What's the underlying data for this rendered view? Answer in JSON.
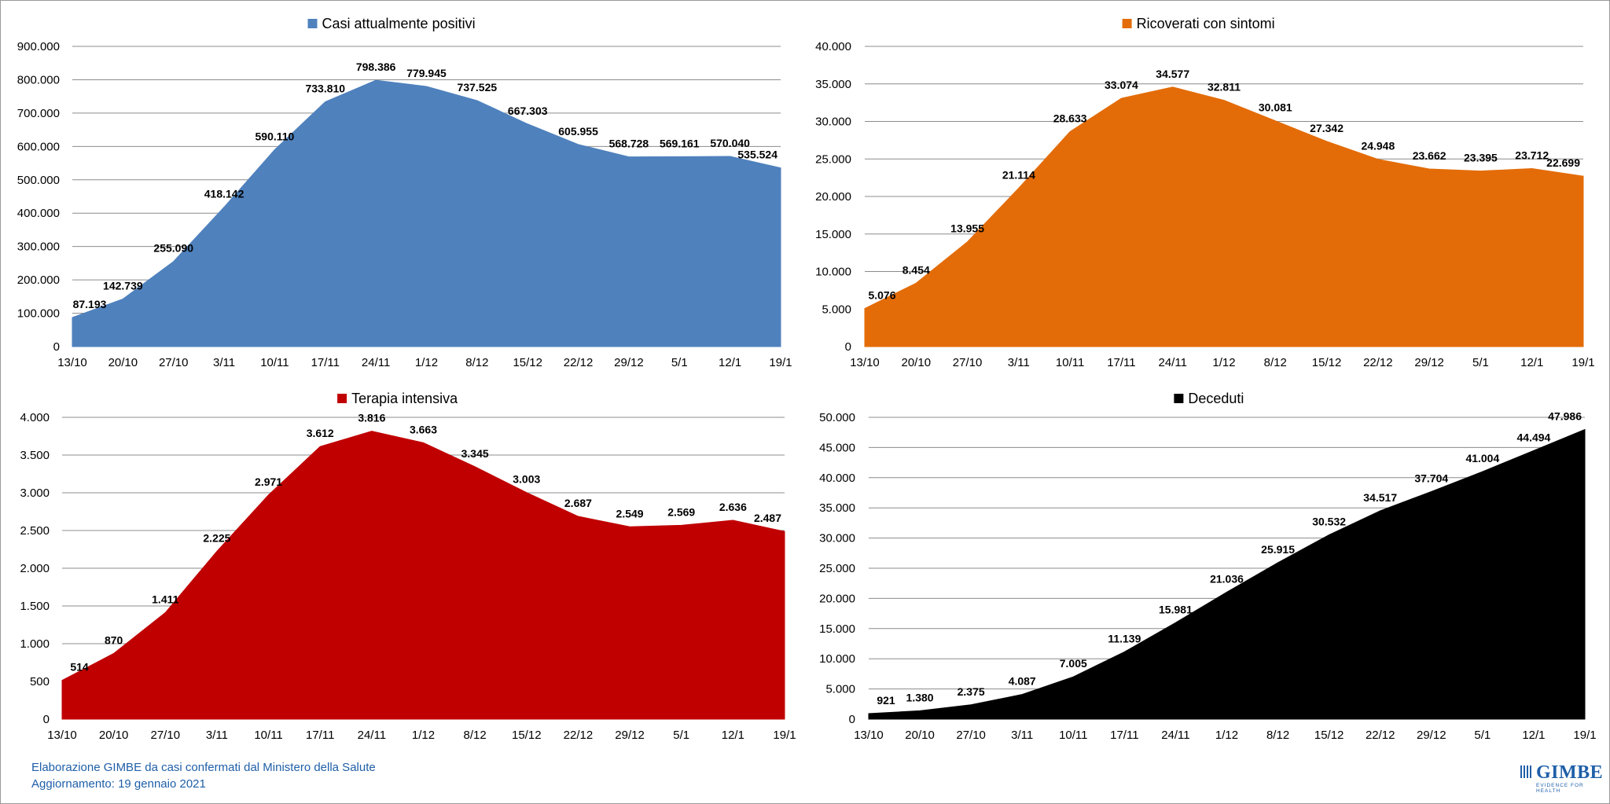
{
  "chart_data": [
    {
      "type": "area",
      "legend": "Casi attualmente positivi",
      "color": "#4f81bd",
      "categories": [
        "13/10",
        "20/10",
        "27/10",
        "3/11",
        "10/11",
        "17/11",
        "24/11",
        "1/12",
        "8/12",
        "15/12",
        "22/12",
        "29/12",
        "5/1",
        "12/1",
        "19/1"
      ],
      "values": [
        87193,
        142739,
        255090,
        418142,
        590110,
        733810,
        798386,
        779945,
        737525,
        667303,
        605955,
        568728,
        569161,
        570040,
        535524
      ],
      "data_labels": [
        "87.193",
        "142.739",
        "255.090",
        "418.142",
        "590.110",
        "733.810",
        "798.386",
        "779.945",
        "737.525",
        "667.303",
        "605.955",
        "568.728",
        "569.161",
        "570.040",
        "535.524"
      ],
      "ylim": [
        0,
        900000
      ],
      "yticks": [
        0,
        100000,
        200000,
        300000,
        400000,
        500000,
        600000,
        700000,
        800000,
        900000
      ],
      "ytick_labels": [
        "0",
        "100.000",
        "200.000",
        "300.000",
        "400.000",
        "500.000",
        "600.000",
        "700.000",
        "800.000",
        "900.000"
      ],
      "grid": true,
      "legend_position": "top"
    },
    {
      "type": "area",
      "legend": "Ricoverati con sintomi",
      "color": "#e36c09",
      "categories": [
        "13/10",
        "20/10",
        "27/10",
        "3/11",
        "10/11",
        "17/11",
        "24/11",
        "1/12",
        "8/12",
        "15/12",
        "22/12",
        "29/12",
        "5/1",
        "12/1",
        "19/1"
      ],
      "values": [
        5076,
        8454,
        13955,
        21114,
        28633,
        33074,
        34577,
        32811,
        30081,
        27342,
        24948,
        23662,
        23395,
        23712,
        22699
      ],
      "data_labels": [
        "5.076",
        "8.454",
        "13.955",
        "21.114",
        "28.633",
        "33.074",
        "34.577",
        "32.811",
        "30.081",
        "27.342",
        "24.948",
        "23.662",
        "23.395",
        "23.712",
        "22.699"
      ],
      "ylim": [
        0,
        40000
      ],
      "yticks": [
        0,
        5000,
        10000,
        15000,
        20000,
        25000,
        30000,
        35000,
        40000
      ],
      "ytick_labels": [
        "0",
        "5.000",
        "10.000",
        "15.000",
        "20.000",
        "25.000",
        "30.000",
        "35.000",
        "40.000"
      ],
      "grid": true,
      "legend_position": "top"
    },
    {
      "type": "area",
      "legend": "Terapia intensiva",
      "color": "#c00000",
      "categories": [
        "13/10",
        "20/10",
        "27/10",
        "3/11",
        "10/11",
        "17/11",
        "24/11",
        "1/12",
        "8/12",
        "15/12",
        "22/12",
        "29/12",
        "5/1",
        "12/1",
        "19/1"
      ],
      "values": [
        514,
        870,
        1411,
        2225,
        2971,
        3612,
        3816,
        3663,
        3345,
        3003,
        2687,
        2549,
        2569,
        2636,
        2487
      ],
      "data_labels": [
        "514",
        "870",
        "1.411",
        "2.225",
        "2.971",
        "3.612",
        "3.816",
        "3.663",
        "3.345",
        "3.003",
        "2.687",
        "2.549",
        "2.569",
        "2.636",
        "2.487"
      ],
      "ylim": [
        0,
        4000
      ],
      "yticks": [
        0,
        500,
        1000,
        1500,
        2000,
        2500,
        3000,
        3500,
        4000
      ],
      "ytick_labels": [
        "0",
        "500",
        "1.000",
        "1.500",
        "2.000",
        "2.500",
        "3.000",
        "3.500",
        "4.000"
      ],
      "grid": true,
      "legend_position": "top"
    },
    {
      "type": "area",
      "legend": "Deceduti",
      "color": "#000000",
      "categories": [
        "13/10",
        "20/10",
        "27/10",
        "3/11",
        "10/11",
        "17/11",
        "24/11",
        "1/12",
        "8/12",
        "15/12",
        "22/12",
        "29/12",
        "5/1",
        "12/1",
        "19/1"
      ],
      "values": [
        921,
        1380,
        2375,
        4087,
        7005,
        11139,
        15981,
        21036,
        25915,
        30532,
        34517,
        37704,
        41004,
        44494,
        47986
      ],
      "data_labels": [
        "921",
        "1.380",
        "2.375",
        "4.087",
        "7.005",
        "11.139",
        "15.981",
        "21.036",
        "25.915",
        "30.532",
        "34.517",
        "37.704",
        "41.004",
        "44.494",
        "47.986"
      ],
      "ylim": [
        0,
        50000
      ],
      "yticks": [
        0,
        5000,
        10000,
        15000,
        20000,
        25000,
        30000,
        35000,
        40000,
        45000,
        50000
      ],
      "ytick_labels": [
        "0",
        "5.000",
        "10.000",
        "15.000",
        "20.000",
        "25.000",
        "30.000",
        "35.000",
        "40.000",
        "45.000",
        "50.000"
      ],
      "grid": true,
      "legend_position": "top"
    }
  ],
  "footer": {
    "line1": "Elaborazione GIMBE da casi confermati dal Ministero della Salute",
    "line2": "Aggiornamento: 19 gennaio 2021"
  },
  "logo": {
    "name": "GIMBE",
    "tagline": "EVIDENCE FOR HEALTH"
  }
}
